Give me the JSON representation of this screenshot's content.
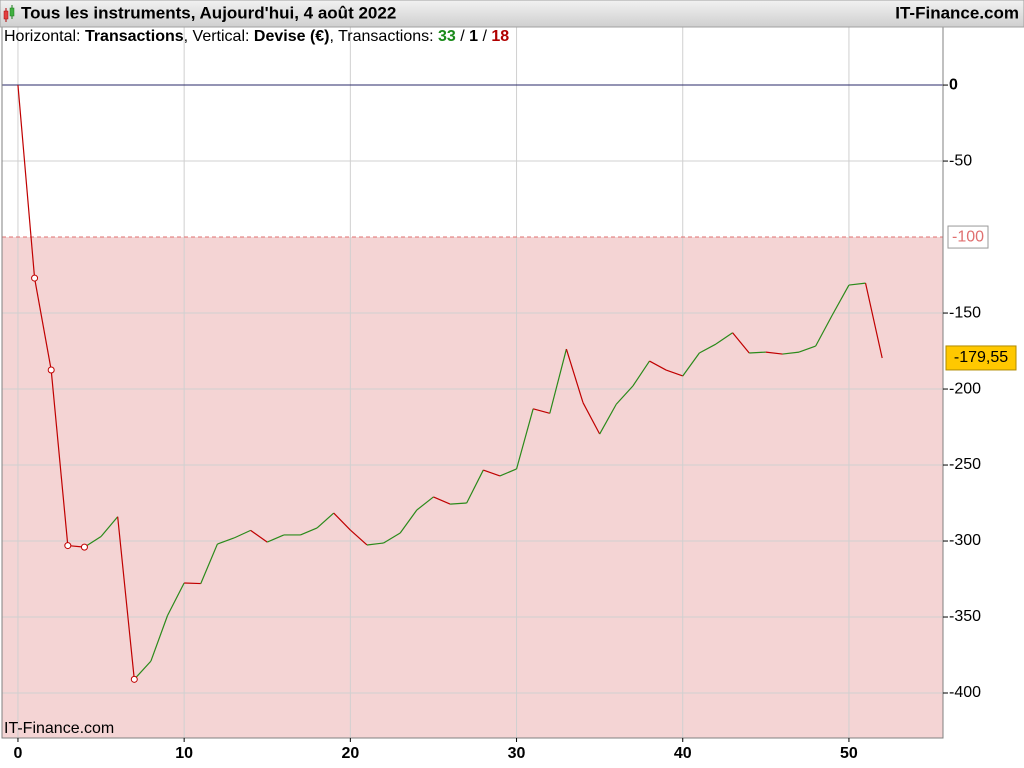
{
  "chart_data": {
    "type": "line",
    "title": "Tous les instruments, Aujourd'hui, 4 août 2022",
    "brand": "IT-Finance.com",
    "subtitle": {
      "x_prefix": "Horizontal:",
      "x_axis_label": "Transactions",
      "separator": ", ",
      "y_prefix": "Vertical:",
      "y_axis_label": "Devise (€)",
      "count_prefix": "Transactions:",
      "count_separator": " / ",
      "counts": [
        {
          "value": 33,
          "color": "#1a8a1a"
        },
        {
          "value": 1,
          "color": "#000000"
        },
        {
          "value": 18,
          "color": "#b00000"
        }
      ]
    },
    "x": [
      0,
      1,
      2,
      3,
      4,
      5,
      6,
      7,
      8,
      9,
      10,
      11,
      12,
      13,
      14,
      15,
      16,
      17,
      18,
      19,
      20,
      21,
      22,
      23,
      24,
      25,
      26,
      27,
      28,
      29,
      30,
      31,
      32,
      33,
      34,
      35,
      36,
      37,
      38,
      39,
      40,
      41,
      42,
      43,
      44,
      45,
      46,
      47,
      48,
      49,
      50,
      51,
      52
    ],
    "series": [
      {
        "name": "Devise (€)",
        "up_color": "#2a8a1a",
        "down_color": "#c00000",
        "values": [
          0,
          -127,
          -187.5,
          -303,
          -304,
          -297,
          -284,
          -391,
          -379,
          -349,
          -327.6,
          -328,
          -302,
          -298,
          -293,
          -300.7,
          -296,
          -296,
          -291.4,
          -281.6,
          -292.8,
          -302.6,
          -301.3,
          -294.7,
          -279.6,
          -271,
          -275.7,
          -275,
          -253.3,
          -257.2,
          -252.6,
          -213,
          -216,
          -173.7,
          -209,
          -229.6,
          -210,
          -198,
          -181.6,
          -187.5,
          -191.4,
          -176.3,
          -170.4,
          -163,
          -176.3,
          -175.7,
          -177,
          -175.7,
          -171.7,
          -151.3,
          -131.6,
          -130.3,
          -179.55
        ],
        "value_labels": [
          null,
          null,
          null,
          null,
          null,
          null,
          null,
          null,
          null,
          null,
          null,
          null,
          null,
          null,
          null,
          null,
          null,
          null,
          null,
          null,
          null,
          null,
          null,
          null,
          null,
          null,
          null,
          null,
          null,
          null,
          null,
          null,
          null,
          null,
          null,
          null,
          null,
          null,
          null,
          null,
          null,
          null,
          null,
          null,
          null,
          null,
          null,
          null,
          null,
          null,
          null,
          null,
          "-179,55"
        ]
      }
    ],
    "markers": [
      1,
      2,
      3,
      4,
      7
    ],
    "threshold": -100,
    "threshold_color": "#e07070",
    "threshold_fill": "#f4d4d4",
    "xlim": [
      -0.96,
      55.66
    ],
    "ylim": [
      -429.6,
      38.2
    ],
    "xticks": [
      0,
      10,
      20,
      30,
      40,
      50
    ],
    "yticks": [
      0,
      -50,
      -150,
      -200,
      -250,
      -300,
      -350,
      -400
    ],
    "grid": true
  }
}
